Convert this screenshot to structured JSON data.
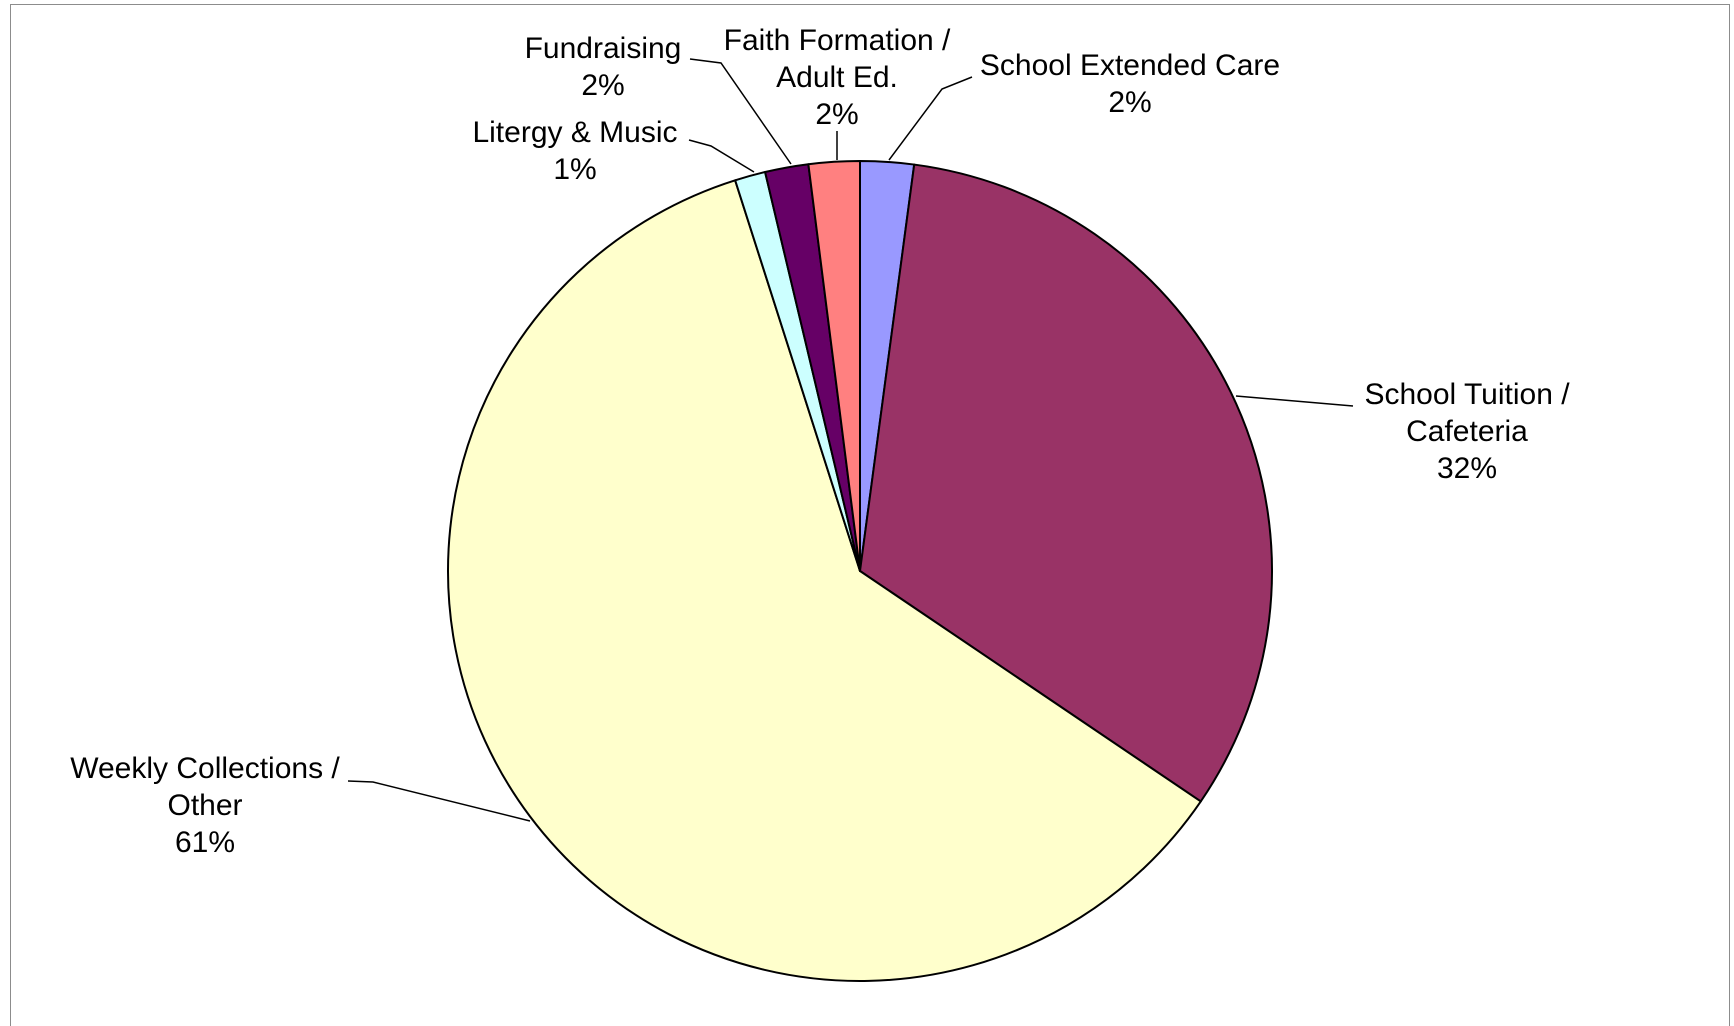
{
  "chart_data": {
    "type": "pie",
    "title": "",
    "start_angle_deg": 0,
    "direction": "clockwise",
    "slices": [
      {
        "label_lines": [
          "School Extended Care"
        ],
        "percent_label": "2%",
        "value": 2.1,
        "color": "#9999ff"
      },
      {
        "label_lines": [
          "School Tuition /",
          "Cafeteria"
        ],
        "percent_label": "32%",
        "value": 32.4,
        "color": "#993366"
      },
      {
        "label_lines": [
          "Weekly Collections /",
          "Other"
        ],
        "percent_label": "61%",
        "value": 60.6,
        "color": "#ffffcc"
      },
      {
        "label_lines": [
          "Litergy & Music"
        ],
        "percent_label": "1%",
        "value": 1.2,
        "color": "#ccffff"
      },
      {
        "label_lines": [
          "Fundraising"
        ],
        "percent_label": "2%",
        "value": 1.7,
        "color": "#660066"
      },
      {
        "label_lines": [
          "Faith Formation /",
          "Adult Ed."
        ],
        "percent_label": "2%",
        "value": 2.0,
        "color": "#ff8080"
      }
    ],
    "legend": "none",
    "border_color": "#000000"
  }
}
